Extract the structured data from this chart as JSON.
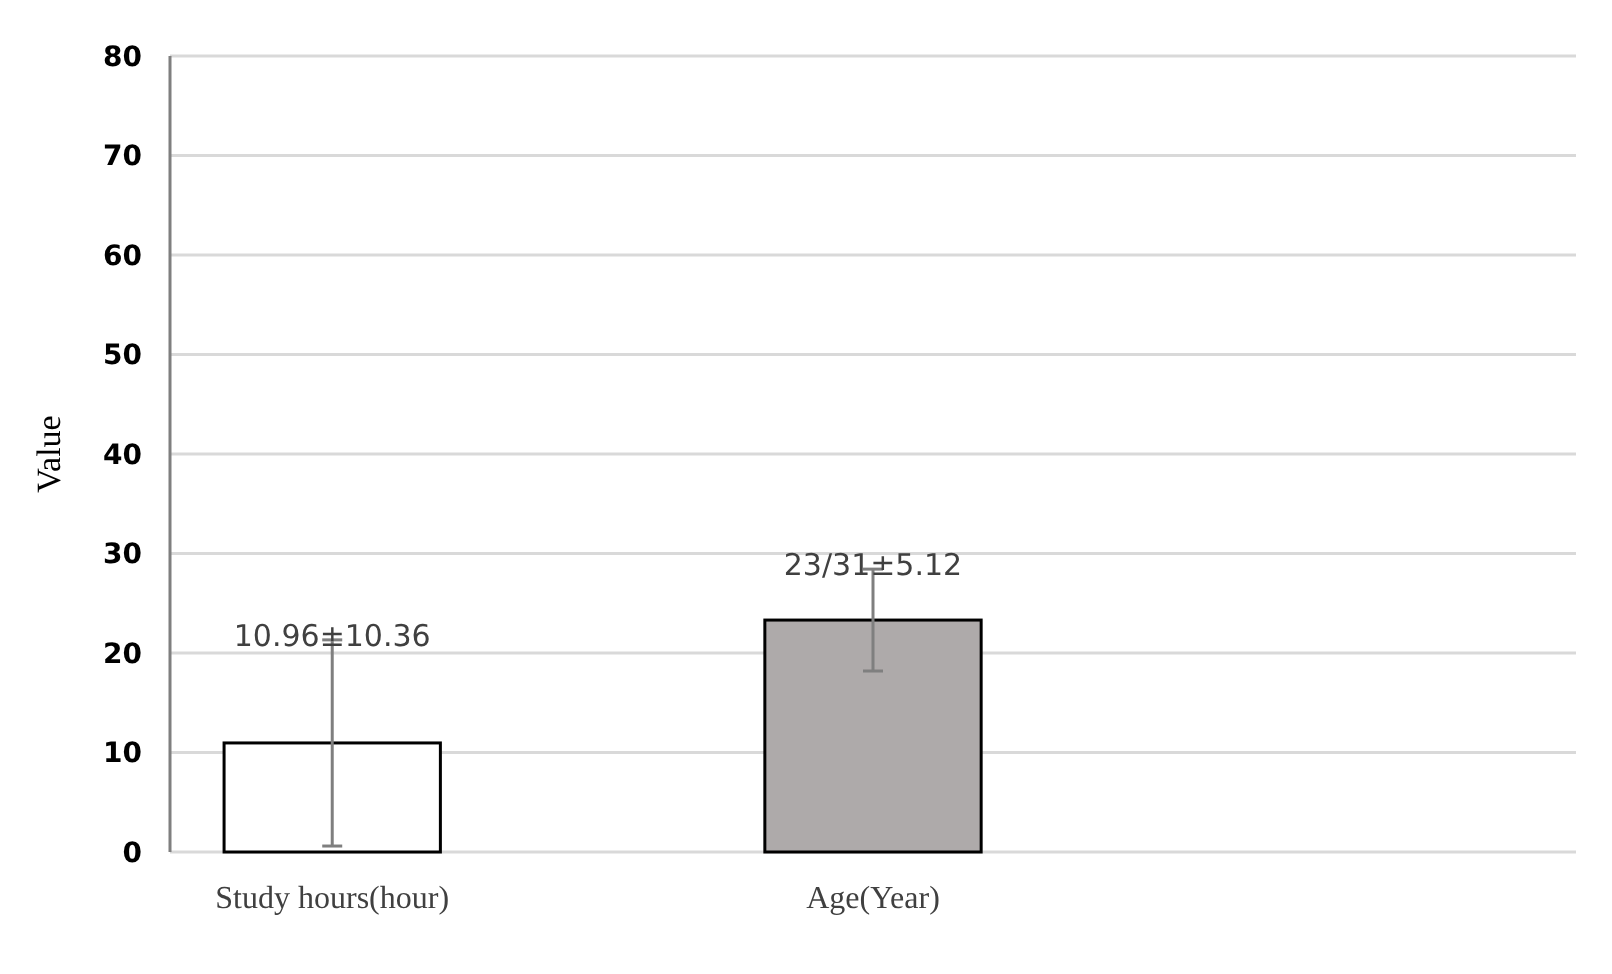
{
  "chart_data": {
    "type": "bar",
    "ylabel": "Value",
    "categories": [
      "Study hours(hour)",
      "Age(Year)",
      null
    ],
    "values": [
      10.96,
      23.31,
      null
    ],
    "colors": [
      "#ffffff",
      "#aeaaaa",
      null
    ],
    "errors": [
      10.36,
      5.12,
      null
    ],
    "value_labels": [
      "10.96±10.36",
      "23/31±5.12",
      null
    ],
    "ylim": [
      0,
      80
    ],
    "yticks": [
      0,
      10,
      20,
      30,
      40,
      50,
      60,
      70,
      80
    ],
    "grid": "y"
  }
}
